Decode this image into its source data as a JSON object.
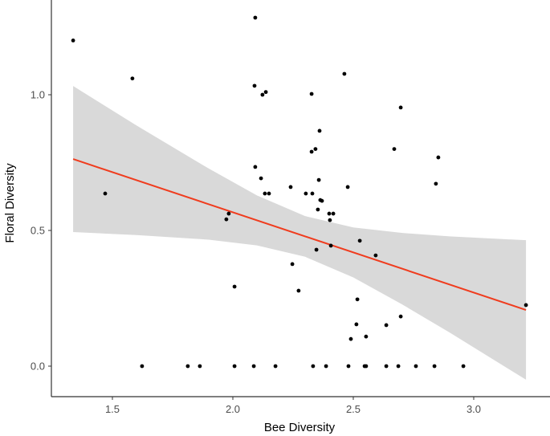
{
  "chart_data": {
    "type": "scatter",
    "title": "",
    "xlabel": "Bee Diversity",
    "ylabel": "Floral Diversity",
    "xlim": [
      1.25,
      3.27
    ],
    "ylim": [
      -0.11,
      1.35
    ],
    "xticks": [
      1.5,
      2.0,
      2.5,
      3.0
    ],
    "xtick_labels": [
      "1.5",
      "2.0",
      "2.5",
      "3.0"
    ],
    "yticks": [
      0.0,
      0.5,
      1.0
    ],
    "ytick_labels": [
      "0.0",
      "0.5",
      "1.0"
    ],
    "grid": false,
    "colors": {
      "points": "#000000",
      "fit": "#f03c1e",
      "band": "#d9d9d9"
    },
    "points": [
      [
        1.337,
        1.2
      ],
      [
        1.583,
        1.06
      ],
      [
        1.47,
        0.636
      ],
      [
        1.623,
        0
      ],
      [
        2.093,
        1.284
      ],
      [
        2.09,
        1.033
      ],
      [
        2.123,
        1.0
      ],
      [
        2.137,
        1.01
      ],
      [
        2.093,
        0.734
      ],
      [
        2.117,
        0.692
      ],
      [
        2.133,
        0.636
      ],
      [
        2.15,
        0.636
      ],
      [
        2.24,
        0.66
      ],
      [
        1.973,
        0.541
      ],
      [
        1.983,
        0.562
      ],
      [
        2.007,
        0.293
      ],
      [
        2.463,
        1.077
      ],
      [
        2.327,
        1.003
      ],
      [
        2.697,
        0.953
      ],
      [
        2.36,
        0.867
      ],
      [
        2.327,
        0.79
      ],
      [
        2.343,
        0.8
      ],
      [
        2.67,
        0.8
      ],
      [
        2.853,
        0.769
      ],
      [
        2.843,
        0.672
      ],
      [
        2.357,
        0.686
      ],
      [
        2.477,
        0.66
      ],
      [
        2.303,
        0.636
      ],
      [
        2.33,
        0.636
      ],
      [
        2.363,
        0.612
      ],
      [
        2.37,
        0.609
      ],
      [
        2.353,
        0.577
      ],
      [
        2.4,
        0.562
      ],
      [
        2.417,
        0.562
      ],
      [
        2.403,
        0.538
      ],
      [
        2.527,
        0.462
      ],
      [
        2.247,
        0.376
      ],
      [
        2.273,
        0.278
      ],
      [
        2.347,
        0.429
      ],
      [
        2.407,
        0.444
      ],
      [
        2.593,
        0.408
      ],
      [
        2.517,
        0.246
      ],
      [
        2.513,
        0.154
      ],
      [
        2.637,
        0.151
      ],
      [
        2.697,
        0.183
      ],
      [
        2.49,
        0.1
      ],
      [
        2.553,
        0.109
      ],
      [
        3.217,
        0.225
      ],
      [
        1.813,
        0
      ],
      [
        1.863,
        0
      ],
      [
        2.007,
        0
      ],
      [
        2.087,
        0
      ],
      [
        2.177,
        0
      ],
      [
        2.333,
        0
      ],
      [
        2.387,
        0
      ],
      [
        2.48,
        0
      ],
      [
        2.547,
        0
      ],
      [
        2.553,
        0
      ],
      [
        2.637,
        0
      ],
      [
        2.687,
        0
      ],
      [
        2.76,
        0
      ],
      [
        2.837,
        0
      ],
      [
        2.957,
        0
      ]
    ],
    "fit_line": [
      [
        1.337,
        0.763
      ],
      [
        3.217,
        0.207
      ]
    ],
    "ci_band": {
      "x": [
        1.337,
        1.6,
        1.9,
        2.1,
        2.3,
        2.5,
        2.7,
        2.9,
        3.217
      ],
      "lower": [
        0.494,
        0.483,
        0.466,
        0.445,
        0.403,
        0.327,
        0.229,
        0.124,
        -0.05
      ],
      "upper": [
        1.032,
        0.887,
        0.728,
        0.629,
        0.553,
        0.511,
        0.491,
        0.478,
        0.464
      ]
    }
  }
}
